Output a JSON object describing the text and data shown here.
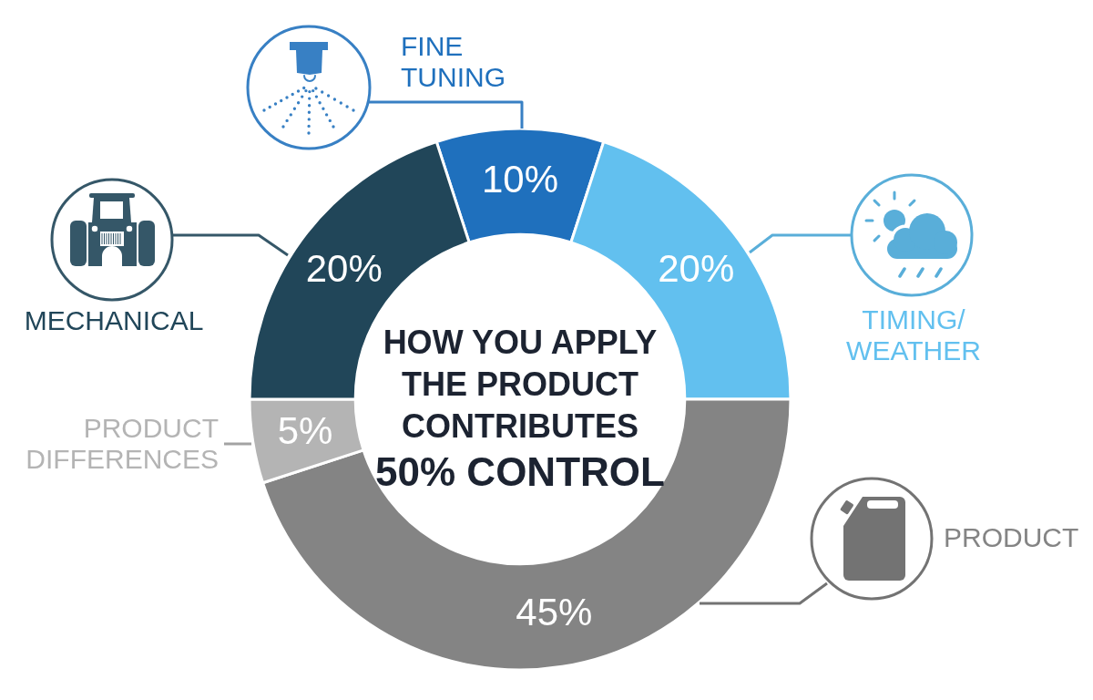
{
  "chart_data": {
    "type": "donut",
    "title": "HOW YOU APPLY THE PRODUCT CONTRIBUTES",
    "subtitle": "50% CONTROL",
    "categories": [
      "FINE TUNING",
      "TIMING/ WEATHER",
      "PRODUCT",
      "PRODUCT DIFFERENCES",
      "MECHANICAL"
    ],
    "values": [
      10,
      20,
      45,
      5,
      20
    ],
    "colors": [
      "#1f70bd",
      "#62c0ef",
      "#848484",
      "#b4b4b4",
      "#214659"
    ],
    "value_labels": [
      "10%",
      "20%",
      "45%",
      "5%",
      "20%"
    ]
  }
}
